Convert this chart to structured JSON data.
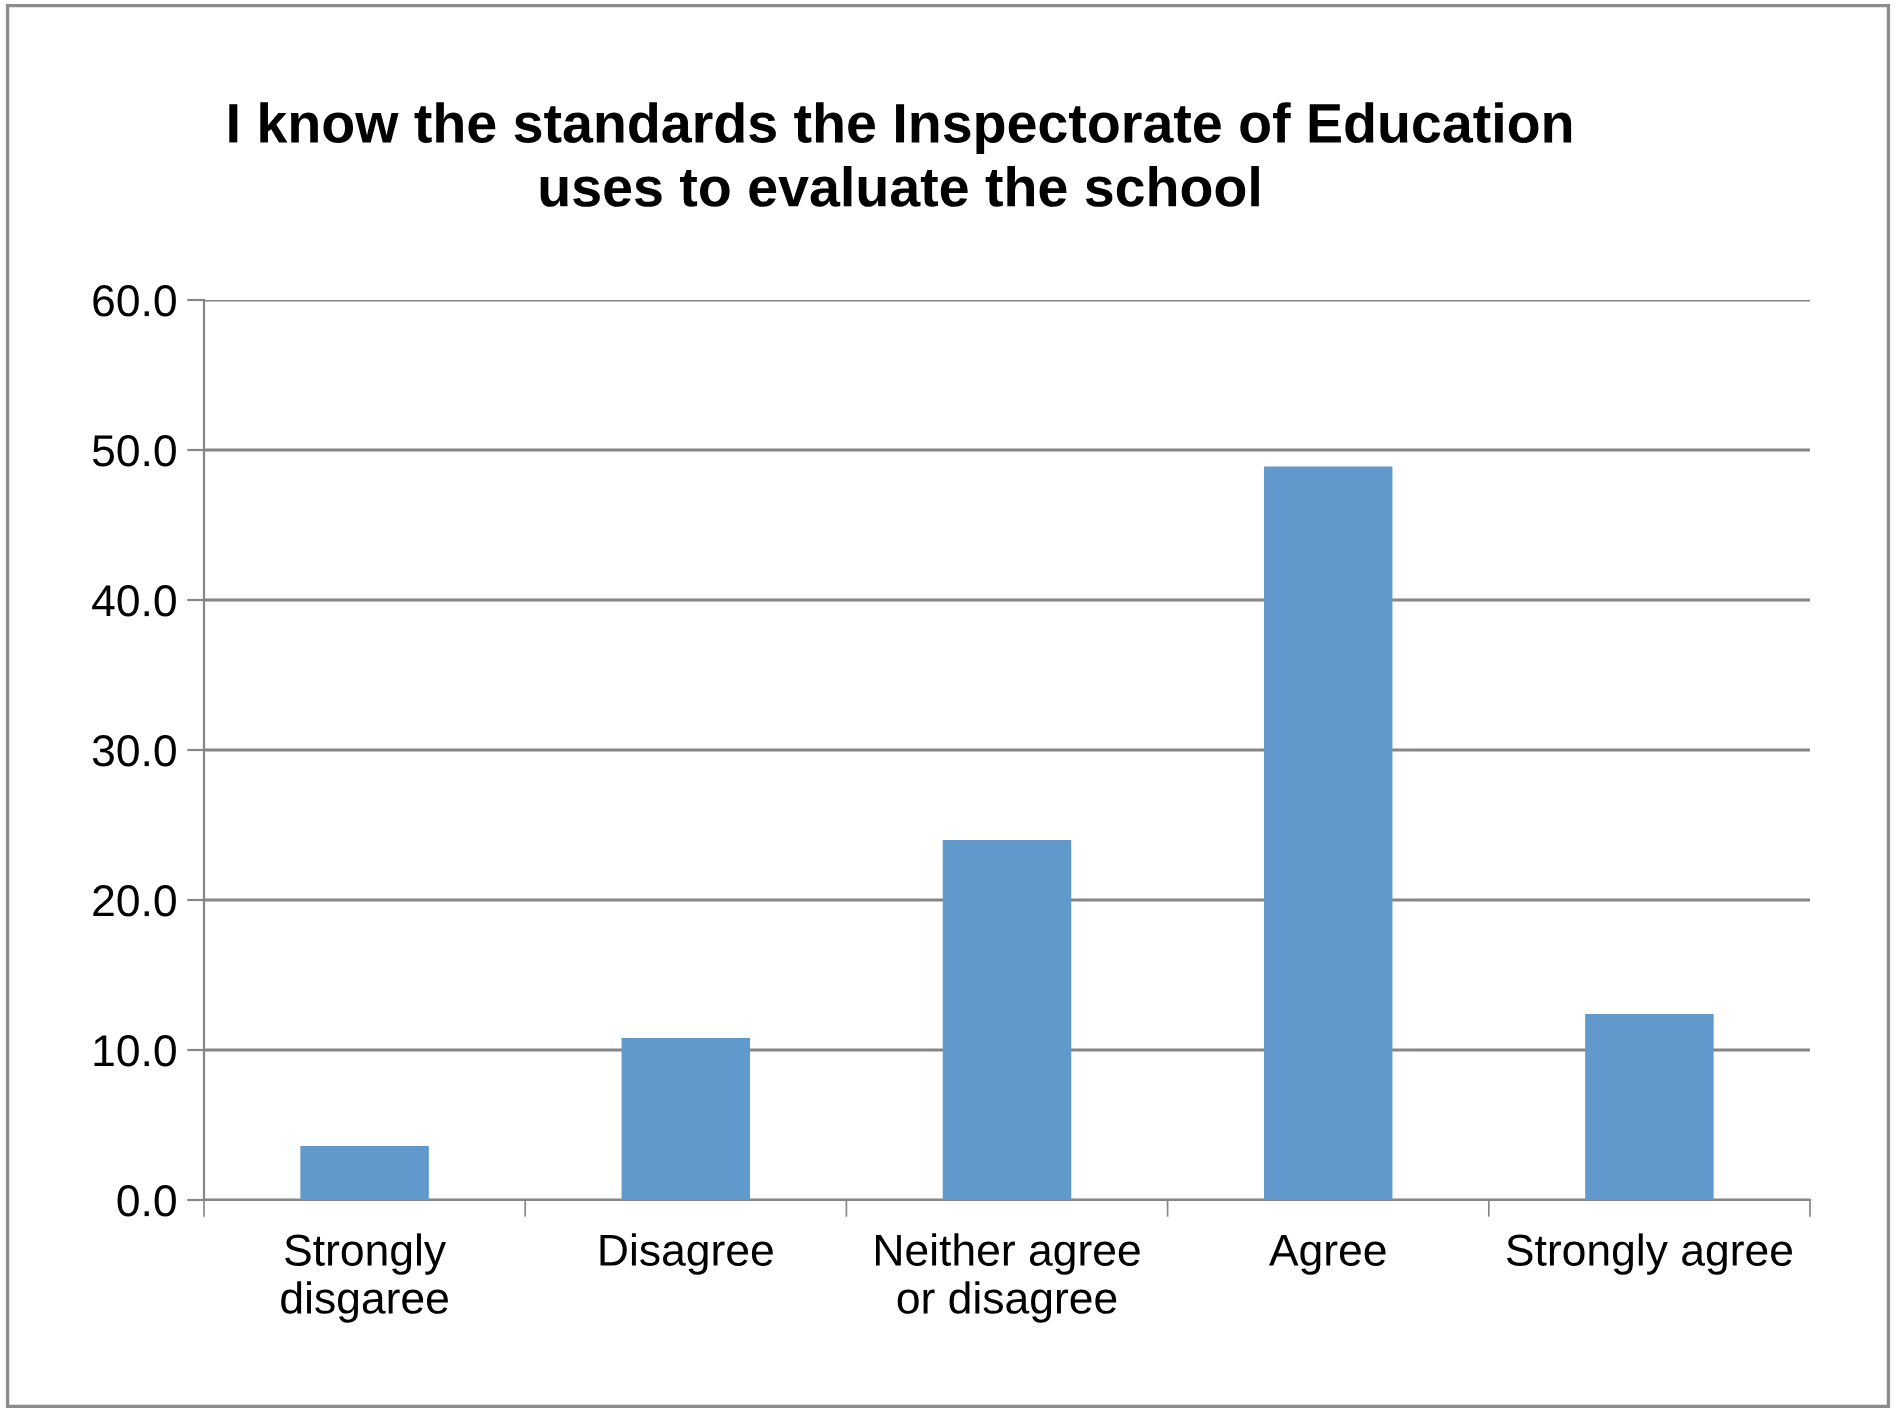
{
  "chart_data": {
    "type": "bar",
    "title": "I know the standards the Inspectorate of Education\nuses to evaluate the school",
    "categories": [
      "Strongly\ndisgaree",
      "Disagree",
      "Neither agree\nor disagree",
      "Agree",
      "Strongly agree"
    ],
    "values": [
      3.6,
      10.8,
      24.0,
      48.9,
      12.4
    ],
    "color": "#6199cc",
    "ylim": [
      0,
      60
    ],
    "yticks": [
      {
        "value": 0,
        "label": "0.0"
      },
      {
        "value": 10,
        "label": "10.0"
      },
      {
        "value": 20,
        "label": "20.0"
      },
      {
        "value": 30,
        "label": "30.0"
      },
      {
        "value": 40,
        "label": "40.0"
      },
      {
        "value": 50,
        "label": "50.0"
      },
      {
        "value": 60,
        "label": "60.0"
      }
    ],
    "grid": "y",
    "legend": false
  }
}
